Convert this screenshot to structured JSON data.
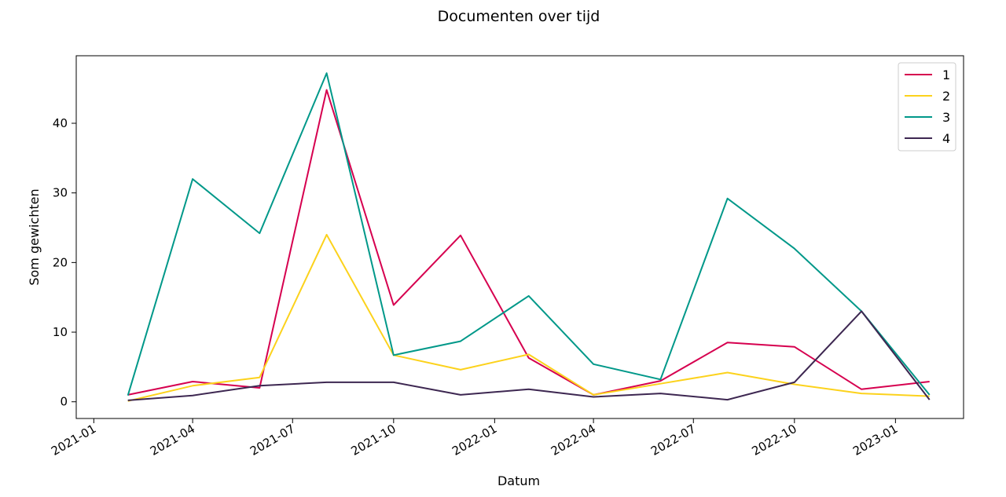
{
  "chart_data": {
    "type": "line",
    "title": "Documenten over tijd",
    "xlabel": "Datum",
    "ylabel": "Som gewichten",
    "x": [
      "2021-02-01",
      "2021-04-01",
      "2021-06-01",
      "2021-08-01",
      "2021-10-01",
      "2021-12-01",
      "2022-02-01",
      "2022-04-01",
      "2022-06-01",
      "2022-08-01",
      "2022-10-01",
      "2022-12-01",
      "2023-02-01"
    ],
    "x_ticks": [
      "2021-01",
      "2021-04",
      "2021-07",
      "2021-10",
      "2022-01",
      "2022-04",
      "2022-07",
      "2022-10",
      "2023-01"
    ],
    "y_ticks": [
      0,
      10,
      20,
      30,
      40
    ],
    "xlim": [
      "2020-12-16",
      "2023-03-04"
    ],
    "ylim": [
      -2.4,
      49.7
    ],
    "legend_position": "top-right",
    "series": [
      {
        "name": "1",
        "color": "#d6004f",
        "values": [
          1.0,
          2.9,
          2.0,
          44.8,
          13.9,
          23.9,
          6.3,
          1.0,
          3.0,
          8.5,
          7.9,
          1.8,
          2.9
        ]
      },
      {
        "name": "2",
        "color": "#fcd21c",
        "values": [
          0.1,
          2.3,
          3.5,
          24.0,
          6.7,
          4.6,
          6.8,
          1.0,
          2.6,
          4.2,
          2.5,
          1.2,
          0.8
        ]
      },
      {
        "name": "3",
        "color": "#009889",
        "values": [
          0.9,
          32.0,
          24.2,
          47.2,
          6.7,
          8.7,
          15.2,
          5.4,
          3.2,
          29.2,
          22.0,
          13.0,
          1.0
        ]
      },
      {
        "name": "4",
        "color": "#3d2751",
        "values": [
          0.2,
          0.9,
          2.3,
          2.8,
          2.8,
          1.0,
          1.8,
          0.7,
          1.2,
          0.3,
          2.8,
          13.0,
          0.3
        ]
      }
    ]
  }
}
